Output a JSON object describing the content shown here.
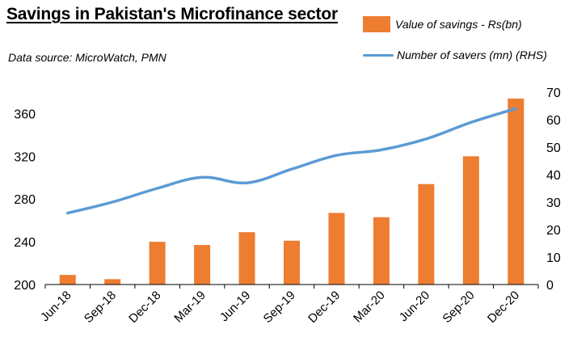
{
  "title": "Savings in Pakistan's Microfinance sector",
  "source": "Data source:  MicroWatch, PMN",
  "colors": {
    "bar": "#ED7D31",
    "line": "#5B9BD5"
  },
  "chart_data": {
    "type": "bar",
    "title": "Savings in Pakistan's Microfinance sector",
    "categories": [
      "Jun-18",
      "Sep-18",
      "Dec-18",
      "Mar-19",
      "Jun-19",
      "Sep-19",
      "Dec-19",
      "Mar-20",
      "Jun-20",
      "Sep-20",
      "Dec-20"
    ],
    "series": [
      {
        "name": "Value of savings - Rs(bn)",
        "type": "bar",
        "axis": "left",
        "values": [
          209,
          205,
          240,
          237,
          249,
          241,
          267,
          263,
          294,
          320,
          374
        ]
      },
      {
        "name": "Number of savers (mn) (RHS)",
        "type": "line",
        "axis": "right",
        "values": [
          26,
          30,
          35,
          39,
          37,
          42,
          47,
          49,
          53,
          59,
          64
        ]
      }
    ],
    "y_left": {
      "ylim": [
        200,
        380
      ],
      "ticks": [
        200,
        240,
        280,
        320,
        360
      ]
    },
    "y_right": {
      "ylim": [
        0,
        70
      ],
      "ticks": [
        0,
        10,
        20,
        30,
        40,
        50,
        60,
        70
      ]
    },
    "xlabel": "",
    "ylabel": "",
    "grid": false,
    "legend": "top-right"
  }
}
